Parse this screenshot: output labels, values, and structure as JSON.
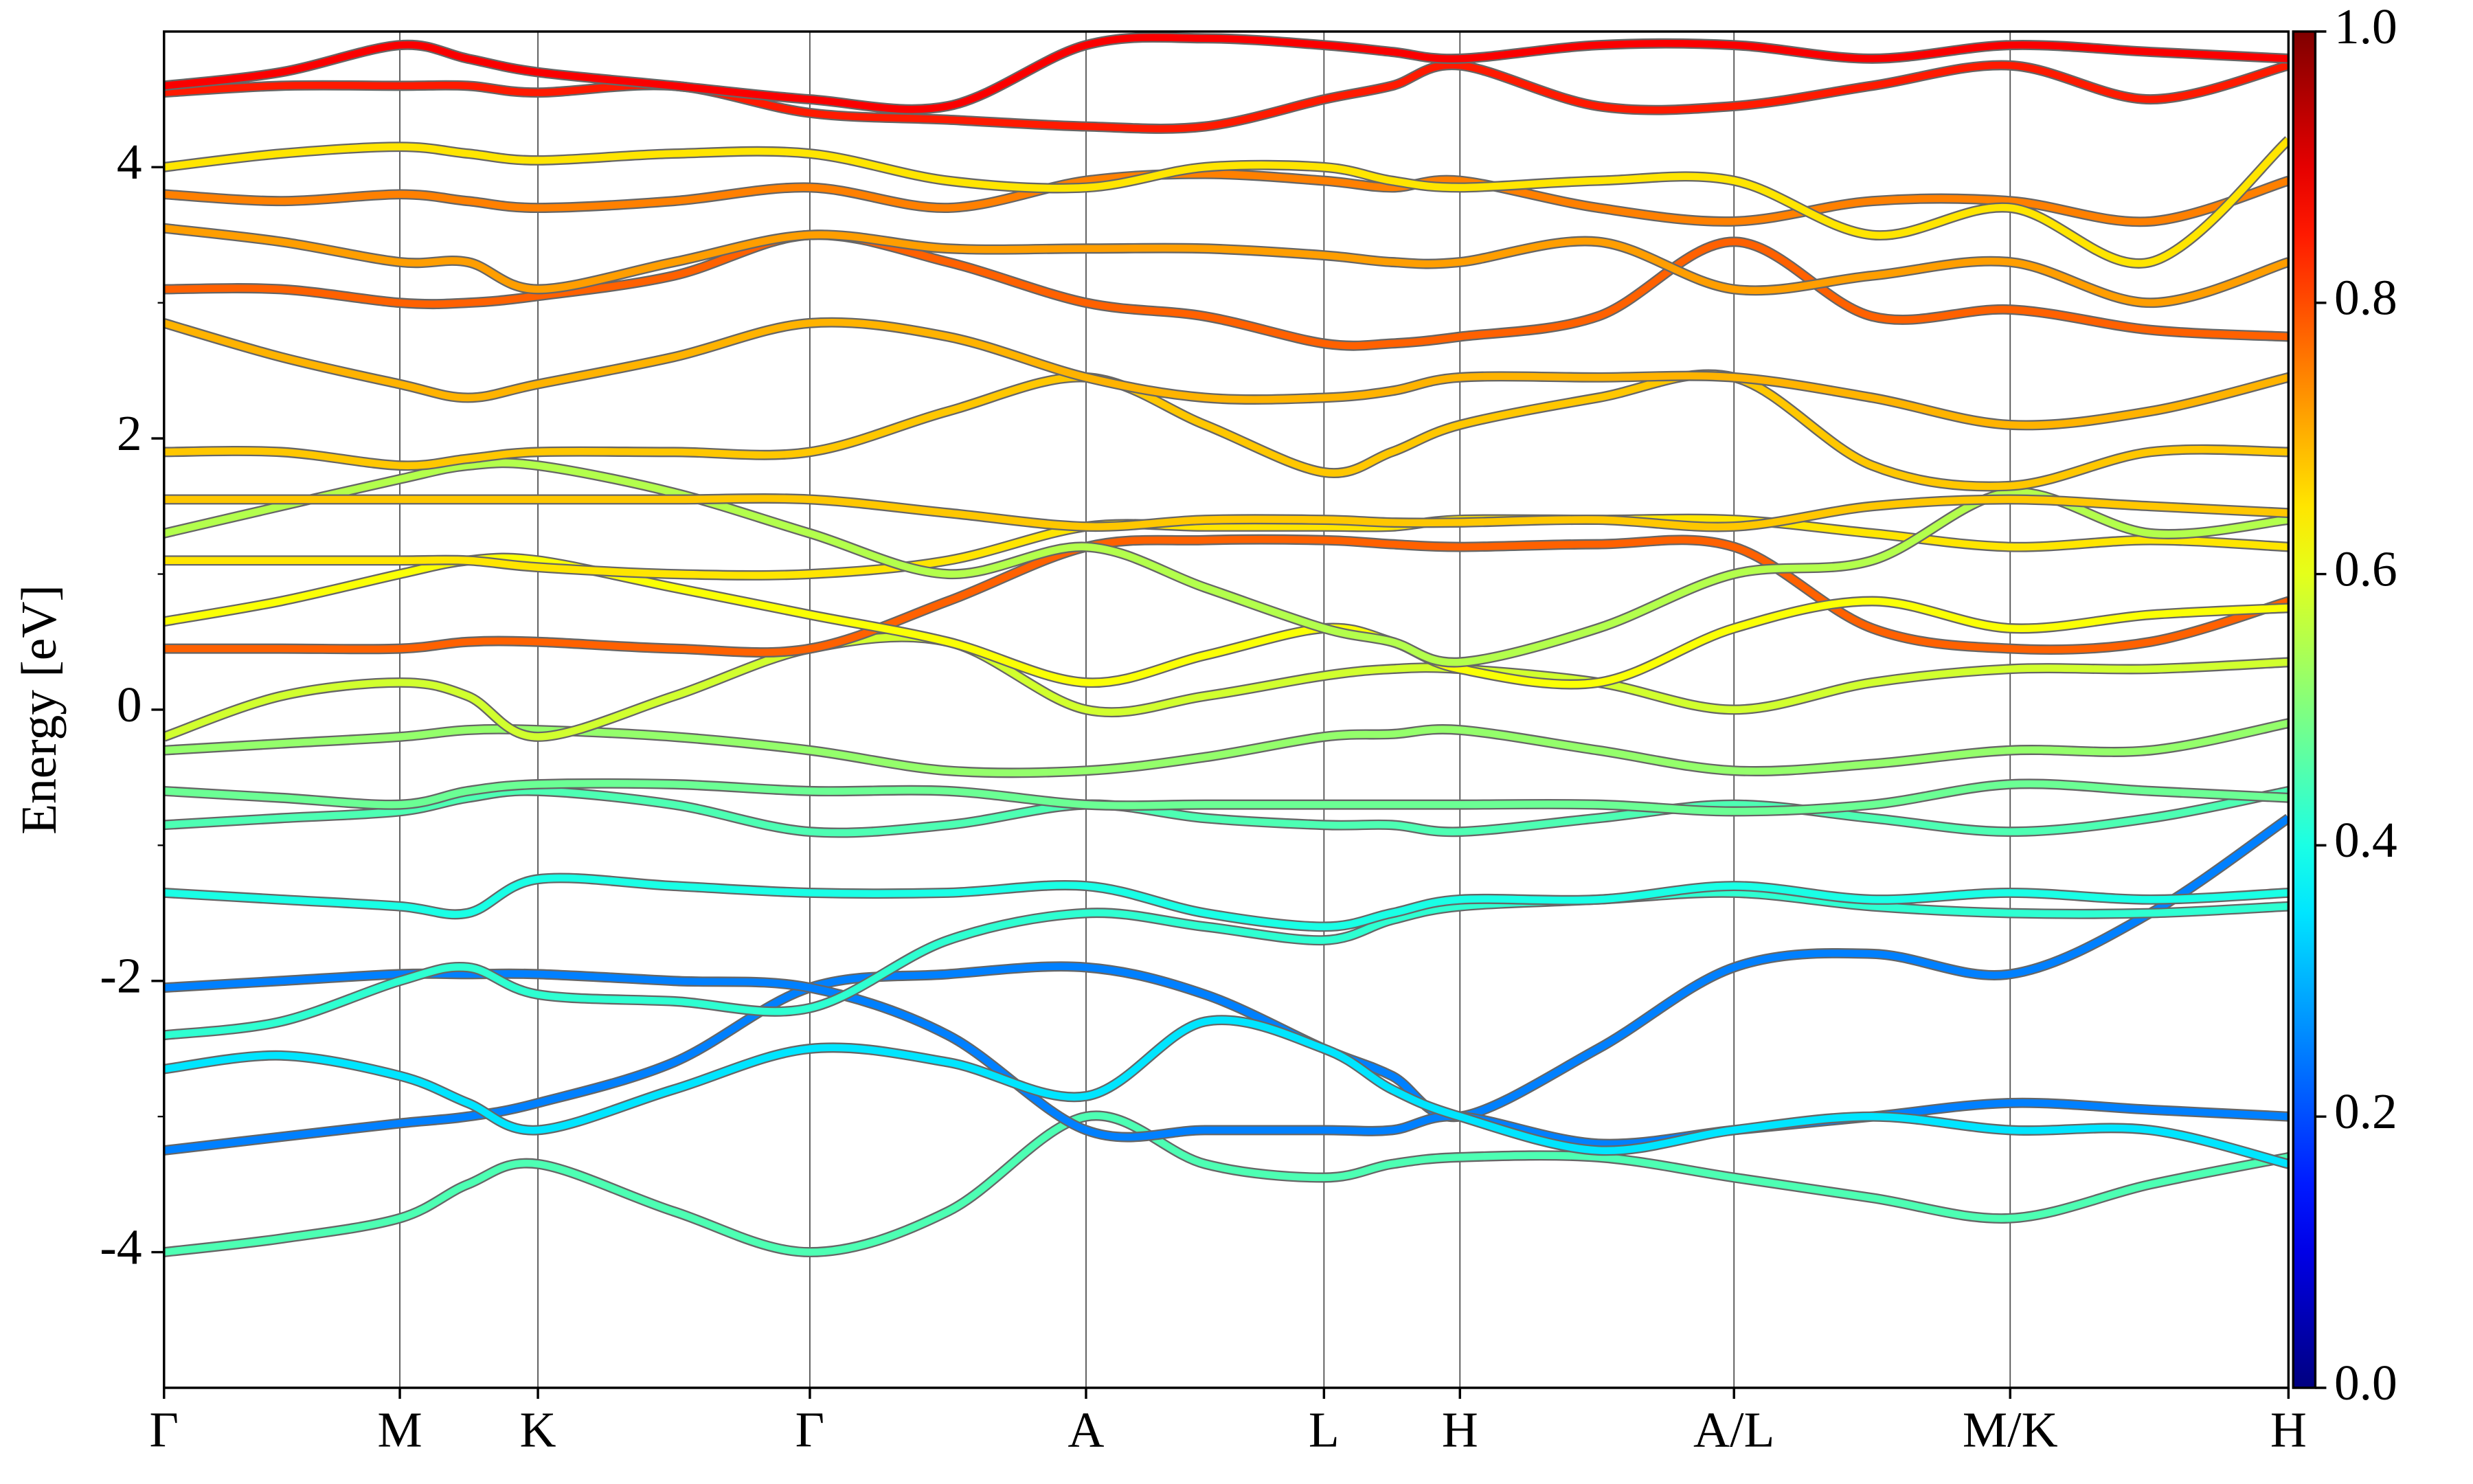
{
  "chart_data": {
    "type": "line",
    "y_label": "Energy [eV]",
    "ylim": [
      -5,
      5
    ],
    "yticks": [
      -4,
      -2,
      0,
      2,
      4
    ],
    "yminorticks": [
      -3,
      -1,
      1,
      3
    ],
    "xlim": [
      0,
      1
    ],
    "xticks": [
      {
        "value": 0,
        "label": "Γ"
      },
      {
        "value": 0.111,
        "label": "M"
      },
      {
        "value": 0.176,
        "label": "K"
      },
      {
        "value": 0.304,
        "label": "Γ"
      },
      {
        "value": 0.434,
        "label": "A"
      },
      {
        "value": 0.546,
        "label": "L"
      },
      {
        "value": 0.61,
        "label": "H"
      },
      {
        "value": 0.739,
        "label": "A/L"
      },
      {
        "value": 0.869,
        "label": "M/K"
      },
      {
        "value": 1,
        "label": "H"
      }
    ],
    "grid": true,
    "colormap": "jet",
    "clim": [
      0,
      1
    ],
    "cticks": [
      {
        "value": 0,
        "label": "0.0"
      },
      0.2,
      0.4,
      0.6,
      0.8,
      {
        "value": 1,
        "label": "1.0"
      }
    ],
    "x": [
      0,
      0.055,
      0.111,
      0.143,
      0.176,
      0.24,
      0.304,
      0.369,
      0.434,
      0.49,
      0.546,
      0.578,
      0.61,
      0.675,
      0.739,
      0.804,
      0.869,
      0.935,
      1.0
    ],
    "series": [
      {
        "weight": 0.45,
        "values": [
          -4.0,
          -3.9,
          -3.75,
          -3.5,
          -3.35,
          -3.7,
          -4.0,
          -3.7,
          -3.0,
          -3.35,
          -3.45,
          -3.35,
          -3.3,
          -3.3,
          -3.45,
          -3.6,
          -3.75,
          -3.5,
          -3.3
        ]
      },
      {
        "weight": 0.25,
        "values": [
          -3.25,
          -3.15,
          -3.05,
          -3.0,
          -2.9,
          -2.6,
          -2.05,
          -1.95,
          -1.9,
          -2.1,
          -2.5,
          -2.7,
          -3.0,
          -2.5,
          -1.9,
          -1.8,
          -1.95,
          -1.5,
          -0.8
        ]
      },
      {
        "weight": 0.25,
        "values": [
          -2.05,
          -2.0,
          -1.95,
          -1.95,
          -1.95,
          -2.0,
          -2.05,
          -2.4,
          -3.1,
          -3.1,
          -3.1,
          -3.1,
          -3.0,
          -3.2,
          -3.1,
          -3.0,
          -2.9,
          -2.95,
          -3.0
        ]
      },
      {
        "weight": 0.42,
        "values": [
          -2.4,
          -2.3,
          -2.0,
          -1.9,
          -2.1,
          -2.15,
          -2.2,
          -1.7,
          -1.5,
          -1.6,
          -1.7,
          -1.55,
          -1.45,
          -1.4,
          -1.35,
          -1.45,
          -1.5,
          -1.5,
          -1.45
        ]
      },
      {
        "weight": 0.35,
        "values": [
          -2.65,
          -2.55,
          -2.7,
          -2.9,
          -3.1,
          -2.8,
          -2.5,
          -2.6,
          -2.85,
          -2.3,
          -2.5,
          -2.8,
          -3.0,
          -3.25,
          -3.1,
          -3.0,
          -3.1,
          -3.1,
          -3.35
        ]
      },
      {
        "weight": 0.4,
        "values": [
          -1.35,
          -1.4,
          -1.45,
          -1.5,
          -1.25,
          -1.3,
          -1.35,
          -1.35,
          -1.3,
          -1.5,
          -1.6,
          -1.5,
          -1.4,
          -1.4,
          -1.3,
          -1.4,
          -1.35,
          -1.4,
          -1.35
        ]
      },
      {
        "weight": 0.45,
        "values": [
          -0.85,
          -0.8,
          -0.75,
          -0.65,
          -0.6,
          -0.7,
          -0.9,
          -0.85,
          -0.7,
          -0.8,
          -0.85,
          -0.85,
          -0.9,
          -0.8,
          -0.7,
          -0.8,
          -0.9,
          -0.8,
          -0.6
        ]
      },
      {
        "weight": 0.48,
        "values": [
          -0.6,
          -0.65,
          -0.7,
          -0.6,
          -0.55,
          -0.55,
          -0.6,
          -0.6,
          -0.7,
          -0.7,
          -0.7,
          -0.7,
          -0.7,
          -0.7,
          -0.75,
          -0.7,
          -0.55,
          -0.6,
          -0.65
        ]
      },
      {
        "weight": 0.52,
        "values": [
          -0.3,
          -0.25,
          -0.2,
          -0.15,
          -0.15,
          -0.2,
          -0.3,
          -0.45,
          -0.45,
          -0.35,
          -0.2,
          -0.18,
          -0.15,
          -0.3,
          -0.45,
          -0.4,
          -0.3,
          -0.3,
          -0.1
        ]
      },
      {
        "weight": 0.58,
        "values": [
          -0.2,
          0.1,
          0.2,
          0.1,
          -0.2,
          0.1,
          0.45,
          0.5,
          0.0,
          0.1,
          0.25,
          0.3,
          0.3,
          0.2,
          0.0,
          0.2,
          0.3,
          0.3,
          0.35
        ]
      },
      {
        "weight": 0.78,
        "values": [
          0.45,
          0.45,
          0.45,
          0.5,
          0.5,
          0.45,
          0.45,
          0.8,
          1.2,
          1.25,
          1.25,
          1.22,
          1.2,
          1.22,
          1.2,
          0.6,
          0.45,
          0.5,
          0.8
        ]
      },
      {
        "weight": 0.62,
        "values": [
          0.65,
          0.8,
          1.0,
          1.1,
          1.1,
          0.9,
          0.7,
          0.5,
          0.2,
          0.4,
          0.6,
          0.5,
          0.3,
          0.2,
          0.6,
          0.8,
          0.6,
          0.7,
          0.75
        ]
      },
      {
        "weight": 0.65,
        "values": [
          1.1,
          1.1,
          1.1,
          1.1,
          1.05,
          1.0,
          1.0,
          1.1,
          1.35,
          1.35,
          1.35,
          1.35,
          1.4,
          1.4,
          1.4,
          1.3,
          1.2,
          1.25,
          1.2
        ]
      },
      {
        "weight": 0.55,
        "values": [
          1.3,
          1.5,
          1.7,
          1.8,
          1.8,
          1.6,
          1.3,
          1.0,
          1.2,
          0.9,
          0.6,
          0.5,
          0.35,
          0.6,
          1.0,
          1.1,
          1.6,
          1.3,
          1.4
        ]
      },
      {
        "weight": 0.68,
        "values": [
          1.55,
          1.55,
          1.55,
          1.55,
          1.55,
          1.55,
          1.55,
          1.45,
          1.35,
          1.4,
          1.4,
          1.38,
          1.38,
          1.4,
          1.35,
          1.5,
          1.55,
          1.5,
          1.45
        ]
      },
      {
        "weight": 0.68,
        "values": [
          1.9,
          1.9,
          1.8,
          1.85,
          1.9,
          1.9,
          1.9,
          2.2,
          2.45,
          2.1,
          1.75,
          1.9,
          2.1,
          2.3,
          2.45,
          1.8,
          1.65,
          1.9,
          1.9
        ]
      },
      {
        "weight": 0.7,
        "values": [
          2.85,
          2.6,
          2.4,
          2.3,
          2.4,
          2.6,
          2.85,
          2.75,
          2.45,
          2.3,
          2.3,
          2.35,
          2.45,
          2.45,
          2.45,
          2.3,
          2.1,
          2.2,
          2.45
        ]
      },
      {
        "weight": 0.78,
        "values": [
          3.1,
          3.1,
          3.0,
          3.0,
          3.05,
          3.2,
          3.5,
          3.3,
          3.0,
          2.9,
          2.7,
          2.7,
          2.75,
          2.9,
          3.45,
          2.9,
          2.95,
          2.8,
          2.75
        ]
      },
      {
        "weight": 0.72,
        "values": [
          3.55,
          3.45,
          3.3,
          3.3,
          3.1,
          3.3,
          3.5,
          3.4,
          3.4,
          3.4,
          3.35,
          3.3,
          3.3,
          3.45,
          3.1,
          3.2,
          3.3,
          3.0,
          3.3
        ]
      },
      {
        "weight": 0.75,
        "values": [
          3.8,
          3.75,
          3.8,
          3.75,
          3.7,
          3.75,
          3.85,
          3.7,
          3.9,
          3.95,
          3.9,
          3.85,
          3.9,
          3.7,
          3.6,
          3.75,
          3.75,
          3.6,
          3.9
        ]
      },
      {
        "weight": 0.65,
        "values": [
          4.0,
          4.1,
          4.15,
          4.1,
          4.05,
          4.1,
          4.1,
          3.9,
          3.85,
          4.0,
          4.0,
          3.9,
          3.85,
          3.9,
          3.9,
          3.5,
          3.7,
          3.3,
          4.2
        ]
      },
      {
        "weight": 0.85,
        "values": [
          4.55,
          4.6,
          4.6,
          4.6,
          4.55,
          4.6,
          4.4,
          4.35,
          4.3,
          4.3,
          4.5,
          4.6,
          4.75,
          4.45,
          4.45,
          4.6,
          4.75,
          4.5,
          4.75
        ]
      },
      {
        "weight": 0.88,
        "values": [
          4.6,
          4.7,
          4.9,
          4.8,
          4.7,
          4.6,
          4.5,
          4.45,
          4.9,
          4.95,
          4.9,
          4.85,
          4.8,
          4.9,
          4.9,
          4.8,
          4.9,
          4.85,
          4.8
        ]
      }
    ]
  }
}
